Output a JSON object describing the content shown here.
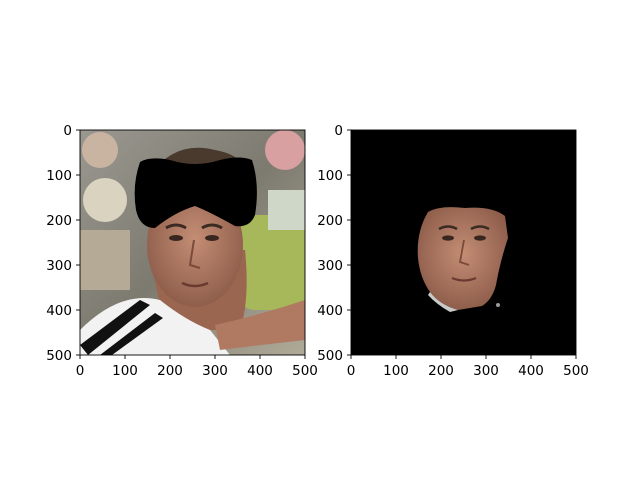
{
  "chart_data": [
    {
      "type": "image",
      "image_content": "photo of a tennis player; region above the face (hair) masked out in black",
      "xlim": [
        0,
        500
      ],
      "ylim": [
        500,
        0
      ],
      "x_ticks": [
        0,
        100,
        200,
        300,
        400,
        500
      ],
      "y_ticks": [
        0,
        100,
        200,
        300,
        400,
        500
      ],
      "x_tick_labels": [
        "0",
        "100",
        "200",
        "300",
        "400",
        "500"
      ],
      "y_tick_labels": [
        "0",
        "100",
        "200",
        "300",
        "400",
        "500"
      ],
      "title": "",
      "xlabel": "",
      "ylabel": ""
    },
    {
      "type": "image",
      "image_content": "segmentation result: only the face region is visible, everything else black",
      "xlim": [
        0,
        500
      ],
      "ylim": [
        500,
        0
      ],
      "x_ticks": [
        0,
        100,
        200,
        300,
        400,
        500
      ],
      "y_ticks": [
        0,
        100,
        200,
        300,
        400,
        500
      ],
      "x_tick_labels": [
        "0",
        "100",
        "200",
        "300",
        "400",
        "500"
      ],
      "y_tick_labels": [
        "0",
        "100",
        "200",
        "300",
        "400",
        "500"
      ],
      "title": "",
      "xlabel": "",
      "ylabel": ""
    }
  ],
  "colors": {
    "background": "#ffffff",
    "mask": "#000000",
    "skin": "#b9806a",
    "skin_shadow": "#8a5a48",
    "hair": "#4a3a2e",
    "shirt": "#f2f2f2",
    "stripe": "#111111",
    "crowd_green": "#a6b85a",
    "crowd_gray": "#8d8a84"
  }
}
